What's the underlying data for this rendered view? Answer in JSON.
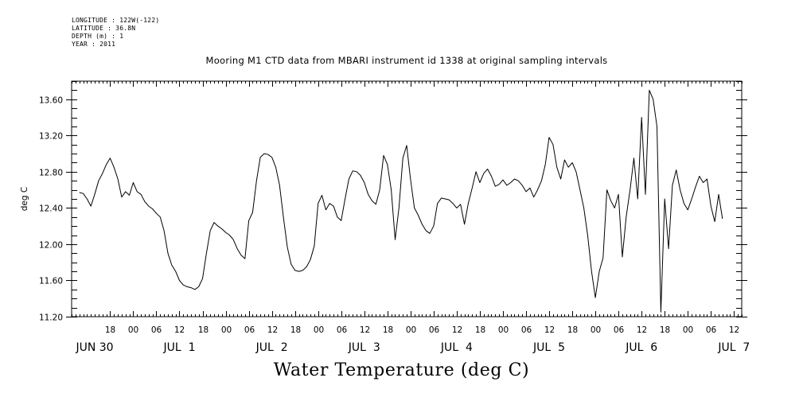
{
  "meta": {
    "lines": [
      "LONGITUDE : 122W(-122)",
      "LATITUDE : 36.8N",
      "DEPTH (m) : 1",
      "YEAR : 2011"
    ]
  },
  "chart_data": {
    "type": "line",
    "title": "Mooring M1 CTD data from MBARI instrument id 1338 at original sampling intervals",
    "xlabel": "Water Temperature (deg C)",
    "ylabel": "deg C",
    "xlim": [
      "JUN 30 08:00",
      "JUL 7 14:00"
    ],
    "ylim": [
      11.2,
      13.8
    ],
    "yticks": [
      "11.20",
      "11.60",
      "12.00",
      "12.40",
      "12.80",
      "13.20",
      "13.60"
    ],
    "hour_ticks": [
      {
        "t": "JUN 30 18:00",
        "label": "18"
      },
      {
        "t": "JUL 1 00:00",
        "label": "00"
      },
      {
        "t": "JUL 1 06:00",
        "label": "06"
      },
      {
        "t": "JUL 1 12:00",
        "label": "12"
      },
      {
        "t": "JUL 1 18:00",
        "label": "18"
      },
      {
        "t": "JUL 2 00:00",
        "label": "00"
      },
      {
        "t": "JUL 2 06:00",
        "label": "06"
      },
      {
        "t": "JUL 2 12:00",
        "label": "12"
      },
      {
        "t": "JUL 2 18:00",
        "label": "18"
      },
      {
        "t": "JUL 3 00:00",
        "label": "00"
      },
      {
        "t": "JUL 3 06:00",
        "label": "06"
      },
      {
        "t": "JUL 3 12:00",
        "label": "12"
      },
      {
        "t": "JUL 3 18:00",
        "label": "18"
      },
      {
        "t": "JUL 4 00:00",
        "label": "00"
      },
      {
        "t": "JUL 4 06:00",
        "label": "06"
      },
      {
        "t": "JUL 4 12:00",
        "label": "12"
      },
      {
        "t": "JUL 4 18:00",
        "label": "18"
      },
      {
        "t": "JUL 5 00:00",
        "label": "00"
      },
      {
        "t": "JUL 5 06:00",
        "label": "06"
      },
      {
        "t": "JUL 5 12:00",
        "label": "12"
      },
      {
        "t": "JUL 5 18:00",
        "label": "18"
      },
      {
        "t": "JUL 6 00:00",
        "label": "00"
      },
      {
        "t": "JUL 6 06:00",
        "label": "06"
      },
      {
        "t": "JUL 6 12:00",
        "label": "12"
      },
      {
        "t": "JUL 6 18:00",
        "label": "18"
      },
      {
        "t": "JUL 7 00:00",
        "label": "00"
      },
      {
        "t": "JUL 7 06:00",
        "label": "06"
      },
      {
        "t": "JUL 7 12:00",
        "label": "12"
      }
    ],
    "day_labels": [
      {
        "t": "JUN 30 14:00",
        "label": "JUN 30"
      },
      {
        "t": "JUL 1 12:00",
        "label": "JUL  1"
      },
      {
        "t": "JUL 2 12:00",
        "label": "JUL  2"
      },
      {
        "t": "JUL 3 12:00",
        "label": "JUL  3"
      },
      {
        "t": "JUL 4 12:00",
        "label": "JUL  4"
      },
      {
        "t": "JUL 5 12:00",
        "label": "JUL  5"
      },
      {
        "t": "JUL 6 12:00",
        "label": "JUL  6"
      },
      {
        "t": "JUL 7 12:00",
        "label": "JUL  7"
      }
    ],
    "series": [
      {
        "color": "#000000",
        "points": [
          [
            "JUN 30 10:00",
            12.57
          ],
          [
            "JUN 30 11:00",
            12.56
          ],
          [
            "JUN 30 12:00",
            12.5
          ],
          [
            "JUN 30 13:00",
            12.42
          ],
          [
            "JUN 30 14:00",
            12.55
          ],
          [
            "JUN 30 15:00",
            12.7
          ],
          [
            "JUN 30 16:00",
            12.78
          ],
          [
            "JUN 30 17:00",
            12.88
          ],
          [
            "JUN 30 18:00",
            12.95
          ],
          [
            "JUN 30 19:00",
            12.85
          ],
          [
            "JUN 30 20:00",
            12.72
          ],
          [
            "JUN 30 21:00",
            12.52
          ],
          [
            "JUN 30 22:00",
            12.58
          ],
          [
            "JUN 30 23:00",
            12.54
          ],
          [
            "JUL 1 00:00",
            12.68
          ],
          [
            "JUL 1 01:00",
            12.58
          ],
          [
            "JUL 1 02:00",
            12.55
          ],
          [
            "JUL 1 03:00",
            12.47
          ],
          [
            "JUL 1 04:00",
            12.42
          ],
          [
            "JUL 1 05:00",
            12.39
          ],
          [
            "JUL 1 06:00",
            12.34
          ],
          [
            "JUL 1 07:00",
            12.3
          ],
          [
            "JUL 1 08:00",
            12.15
          ],
          [
            "JUL 1 09:00",
            11.9
          ],
          [
            "JUL 1 10:00",
            11.77
          ],
          [
            "JUL 1 11:00",
            11.7
          ],
          [
            "JUL 1 12:00",
            11.6
          ],
          [
            "JUL 1 13:00",
            11.55
          ],
          [
            "JUL 1 14:00",
            11.53
          ],
          [
            "JUL 1 15:00",
            11.52
          ],
          [
            "JUL 1 16:00",
            11.5
          ],
          [
            "JUL 1 17:00",
            11.53
          ],
          [
            "JUL 1 18:00",
            11.62
          ],
          [
            "JUL 1 19:00",
            11.9
          ],
          [
            "JUL 1 20:00",
            12.15
          ],
          [
            "JUL 1 21:00",
            12.24
          ],
          [
            "JUL 1 22:00",
            12.2
          ],
          [
            "JUL 1 23:00",
            12.17
          ],
          [
            "JUL 2 00:00",
            12.13
          ],
          [
            "JUL 2 01:00",
            12.1
          ],
          [
            "JUL 2 02:00",
            12.05
          ],
          [
            "JUL 2 03:00",
            11.95
          ],
          [
            "JUL 2 04:00",
            11.88
          ],
          [
            "JUL 2 05:00",
            11.84
          ],
          [
            "JUL 2 06:00",
            12.26
          ],
          [
            "JUL 2 07:00",
            12.35
          ],
          [
            "JUL 2 08:00",
            12.7
          ],
          [
            "JUL 2 09:00",
            12.96
          ],
          [
            "JUL 2 10:00",
            13.0
          ],
          [
            "JUL 2 11:00",
            12.99
          ],
          [
            "JUL 2 12:00",
            12.96
          ],
          [
            "JUL 2 13:00",
            12.85
          ],
          [
            "JUL 2 14:00",
            12.65
          ],
          [
            "JUL 2 15:00",
            12.3
          ],
          [
            "JUL 2 16:00",
            11.97
          ],
          [
            "JUL 2 17:00",
            11.78
          ],
          [
            "JUL 2 18:00",
            11.71
          ],
          [
            "JUL 2 19:00",
            11.7
          ],
          [
            "JUL 2 20:00",
            11.71
          ],
          [
            "JUL 2 21:00",
            11.75
          ],
          [
            "JUL 2 22:00",
            11.83
          ],
          [
            "JUL 2 23:00",
            11.98
          ],
          [
            "JUL 3 00:00",
            12.45
          ],
          [
            "JUL 3 01:00",
            12.54
          ],
          [
            "JUL 3 02:00",
            12.38
          ],
          [
            "JUL 3 03:00",
            12.45
          ],
          [
            "JUL 3 04:00",
            12.42
          ],
          [
            "JUL 3 05:00",
            12.3
          ],
          [
            "JUL 3 06:00",
            12.26
          ],
          [
            "JUL 3 07:00",
            12.5
          ],
          [
            "JUL 3 08:00",
            12.72
          ],
          [
            "JUL 3 09:00",
            12.81
          ],
          [
            "JUL 3 10:00",
            12.8
          ],
          [
            "JUL 3 11:00",
            12.76
          ],
          [
            "JUL 3 12:00",
            12.68
          ],
          [
            "JUL 3 13:00",
            12.55
          ],
          [
            "JUL 3 14:00",
            12.48
          ],
          [
            "JUL 3 15:00",
            12.44
          ],
          [
            "JUL 3 16:00",
            12.6
          ],
          [
            "JUL 3 17:00",
            12.98
          ],
          [
            "JUL 3 18:00",
            12.88
          ],
          [
            "JUL 3 19:00",
            12.6
          ],
          [
            "JUL 3 20:00",
            12.05
          ],
          [
            "JUL 3 21:00",
            12.4
          ],
          [
            "JUL 3 22:00",
            12.95
          ],
          [
            "JUL 3 23:00",
            13.09
          ],
          [
            "JUL 4 00:00",
            12.72
          ],
          [
            "JUL 4 01:00",
            12.4
          ],
          [
            "JUL 4 02:00",
            12.32
          ],
          [
            "JUL 4 03:00",
            12.22
          ],
          [
            "JUL 4 04:00",
            12.15
          ],
          [
            "JUL 4 05:00",
            12.12
          ],
          [
            "JUL 4 06:00",
            12.2
          ],
          [
            "JUL 4 07:00",
            12.45
          ],
          [
            "JUL 4 08:00",
            12.51
          ],
          [
            "JUL 4 09:00",
            12.5
          ],
          [
            "JUL 4 10:00",
            12.49
          ],
          [
            "JUL 4 11:00",
            12.45
          ],
          [
            "JUL 4 12:00",
            12.4
          ],
          [
            "JUL 4 13:00",
            12.44
          ],
          [
            "JUL 4 14:00",
            12.22
          ],
          [
            "JUL 4 15:00",
            12.45
          ],
          [
            "JUL 4 16:00",
            12.62
          ],
          [
            "JUL 4 17:00",
            12.8
          ],
          [
            "JUL 4 18:00",
            12.68
          ],
          [
            "JUL 4 19:00",
            12.78
          ],
          [
            "JUL 4 20:00",
            12.83
          ],
          [
            "JUL 4 21:00",
            12.75
          ],
          [
            "JUL 4 22:00",
            12.64
          ],
          [
            "JUL 4 23:00",
            12.66
          ],
          [
            "JUL 5 00:00",
            12.71
          ],
          [
            "JUL 5 01:00",
            12.65
          ],
          [
            "JUL 5 02:00",
            12.68
          ],
          [
            "JUL 5 03:00",
            12.72
          ],
          [
            "JUL 5 04:00",
            12.7
          ],
          [
            "JUL 5 05:00",
            12.65
          ],
          [
            "JUL 5 06:00",
            12.58
          ],
          [
            "JUL 5 07:00",
            12.62
          ],
          [
            "JUL 5 08:00",
            12.52
          ],
          [
            "JUL 5 09:00",
            12.6
          ],
          [
            "JUL 5 10:00",
            12.7
          ],
          [
            "JUL 5 11:00",
            12.88
          ],
          [
            "JUL 5 12:00",
            13.18
          ],
          [
            "JUL 5 13:00",
            13.1
          ],
          [
            "JUL 5 14:00",
            12.85
          ],
          [
            "JUL 5 15:00",
            12.72
          ],
          [
            "JUL 5 16:00",
            12.93
          ],
          [
            "JUL 5 17:00",
            12.85
          ],
          [
            "JUL 5 18:00",
            12.9
          ],
          [
            "JUL 5 19:00",
            12.8
          ],
          [
            "JUL 5 20:00",
            12.6
          ],
          [
            "JUL 5 21:00",
            12.4
          ],
          [
            "JUL 5 22:00",
            12.1
          ],
          [
            "JUL 5 23:00",
            11.7
          ],
          [
            "JUL 6 00:00",
            11.41
          ],
          [
            "JUL 6 01:00",
            11.7
          ],
          [
            "JUL 6 02:00",
            11.85
          ],
          [
            "JUL 6 03:00",
            12.6
          ],
          [
            "JUL 6 04:00",
            12.48
          ],
          [
            "JUL 6 05:00",
            12.4
          ],
          [
            "JUL 6 06:00",
            12.55
          ],
          [
            "JUL 6 07:00",
            11.86
          ],
          [
            "JUL 6 08:00",
            12.3
          ],
          [
            "JUL 6 09:00",
            12.6
          ],
          [
            "JUL 6 10:00",
            12.95
          ],
          [
            "JUL 6 11:00",
            12.5
          ],
          [
            "JUL 6 12:00",
            13.4
          ],
          [
            "JUL 6 13:00",
            12.55
          ],
          [
            "JUL 6 14:00",
            13.7
          ],
          [
            "JUL 6 15:00",
            13.6
          ],
          [
            "JUL 6 16:00",
            13.3
          ],
          [
            "JUL 6 17:00",
            11.25
          ],
          [
            "JUL 6 18:00",
            12.5
          ],
          [
            "JUL 6 19:00",
            11.95
          ],
          [
            "JUL 6 20:00",
            12.65
          ],
          [
            "JUL 6 21:00",
            12.82
          ],
          [
            "JUL 6 22:00",
            12.6
          ],
          [
            "JUL 6 23:00",
            12.45
          ],
          [
            "JUL 7 00:00",
            12.38
          ],
          [
            "JUL 7 01:00",
            12.5
          ],
          [
            "JUL 7 02:00",
            12.63
          ],
          [
            "JUL 7 03:00",
            12.75
          ],
          [
            "JUL 7 04:00",
            12.68
          ],
          [
            "JUL 7 05:00",
            12.72
          ],
          [
            "JUL 7 06:00",
            12.42
          ],
          [
            "JUL 7 07:00",
            12.25
          ],
          [
            "JUL 7 08:00",
            12.55
          ],
          [
            "JUL 7 09:00",
            12.28
          ]
        ]
      }
    ]
  }
}
